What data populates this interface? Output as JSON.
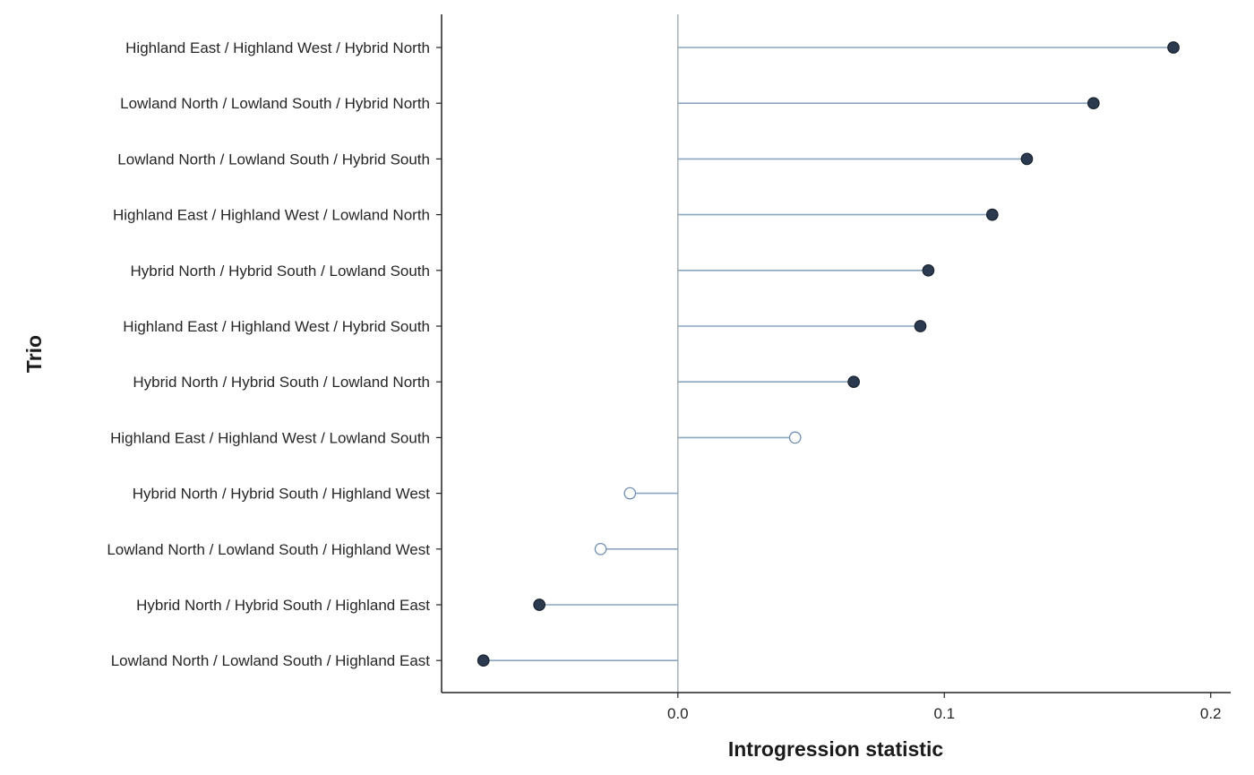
{
  "chart_data": {
    "type": "lollipop",
    "xlabel": "Introgression statistic",
    "ylabel": "Trio",
    "xlim": [
      -0.0887,
      0.2075
    ],
    "xticks": [
      0.0,
      0.1,
      0.2
    ],
    "xtick_labels": [
      "0.0",
      "0.1",
      "0.2"
    ],
    "baseline": 0.0,
    "grid": false,
    "legend": "none",
    "colors": {
      "stem": "#8aa6c1",
      "significant_fill": "#2b3a4e",
      "non_significant_fill": "#ffffff",
      "marker_edge_nonsig": "#6f8fb2",
      "baseline": "#a8b0b8",
      "axis": "#222222"
    },
    "categories": [
      "Highland East / Highland West / Hybrid North",
      "Lowland North / Lowland South / Hybrid North",
      "Lowland North / Lowland South / Hybrid South",
      "Highland East / Highland West / Lowland North",
      "Hybrid North / Hybrid South / Lowland South",
      "Highland East / Highland West / Hybrid South",
      "Hybrid North / Hybrid South / Lowland North",
      "Highland East / Highland West / Lowland South",
      "Hybrid North / Hybrid South / Highland West",
      "Lowland North / Lowland South / Highland West",
      "Hybrid North / Hybrid South / Highland East",
      "Lowland North / Lowland South / Highland East"
    ],
    "values": [
      0.186,
      0.156,
      0.131,
      0.118,
      0.094,
      0.091,
      0.066,
      0.044,
      -0.018,
      -0.029,
      -0.052,
      -0.073
    ],
    "significant": [
      true,
      true,
      true,
      true,
      true,
      true,
      true,
      false,
      false,
      false,
      true,
      true
    ]
  }
}
